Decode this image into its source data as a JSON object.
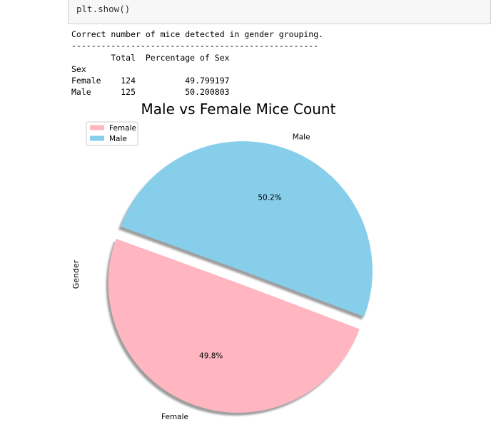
{
  "code_cell": {
    "code": "plt.show()"
  },
  "output": {
    "lines": [
      "Correct number of mice detected in gender grouping.",
      "--------------------------------------------------",
      "        Total  Percentage of Sex",
      "Sex",
      "Female    124          49.799197",
      "Male      125          50.200803"
    ]
  },
  "chart_data": {
    "type": "pie",
    "title": "Male vs Female Mice Count",
    "ylabel": "Gender",
    "categories": [
      "Female",
      "Male"
    ],
    "values": [
      124,
      125
    ],
    "pct_labels": [
      "49.8%",
      "50.2%"
    ],
    "colors": [
      "#ffb6c1",
      "#87ceeb"
    ],
    "explode": [
      0.1,
      0
    ],
    "startangle_deg": 160,
    "shadow": true,
    "legend": {
      "placement": "upper-left",
      "entries": [
        "Female",
        "Male"
      ]
    }
  }
}
